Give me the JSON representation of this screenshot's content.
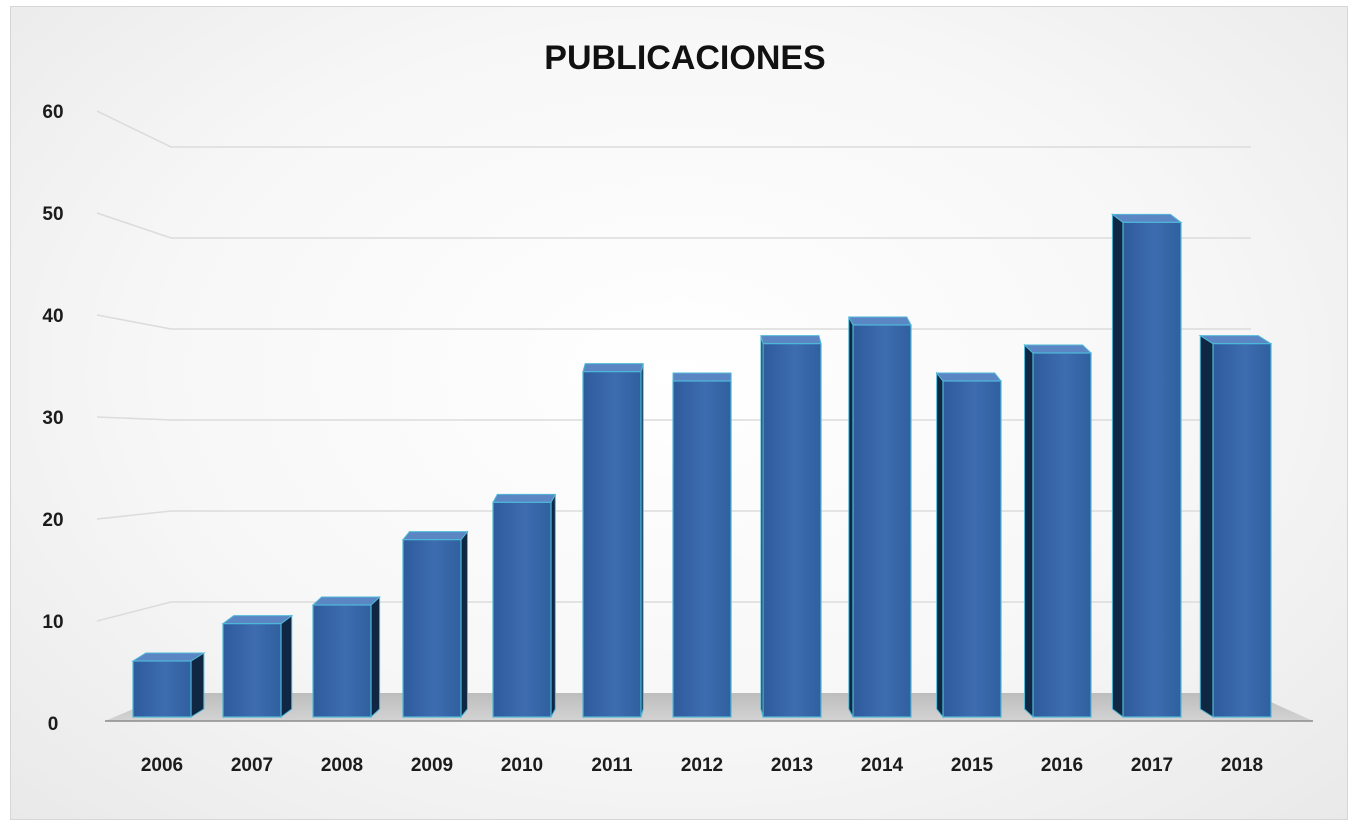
{
  "chart_data": {
    "type": "bar",
    "title": "PUBLICACIONES",
    "xlabel": "",
    "ylabel": "",
    "categories": [
      "2006",
      "2007",
      "2008",
      "2009",
      "2010",
      "2011",
      "2012",
      "2013",
      "2014",
      "2015",
      "2016",
      "2017",
      "2018"
    ],
    "values": [
      6,
      10,
      12,
      19,
      23,
      37,
      36,
      40,
      42,
      36,
      39,
      53,
      40
    ],
    "ylim": [
      0,
      60
    ],
    "yticks": [
      "0",
      "10",
      "20",
      "30",
      "40",
      "50",
      "60"
    ],
    "grid": true,
    "legend": "none",
    "style": "3d-column",
    "colors": {
      "bar_front": "#3a67a8",
      "bar_side": "#0f2742",
      "bar_top": "#5a86c4",
      "bar_edge": "#4fb8d8",
      "floor": "#c4c4c4",
      "gridline": "#dcdcdc"
    }
  }
}
